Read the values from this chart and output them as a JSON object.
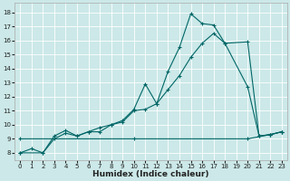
{
  "xlabel": "Humidex (Indice chaleur)",
  "bg_color": "#cce8e8",
  "line_color": "#006666",
  "xlim": [
    -0.5,
    23.5
  ],
  "ylim": [
    7.5,
    18.7
  ],
  "xticks": [
    0,
    1,
    2,
    3,
    4,
    5,
    6,
    7,
    8,
    9,
    10,
    11,
    12,
    13,
    14,
    15,
    16,
    17,
    18,
    19,
    20,
    21,
    22,
    23
  ],
  "yticks": [
    8,
    9,
    10,
    11,
    12,
    13,
    14,
    15,
    16,
    17,
    18
  ],
  "line1_x": [
    0,
    1,
    2,
    3,
    4,
    5,
    6,
    7,
    8,
    9,
    10,
    11,
    12,
    13,
    14,
    15,
    16,
    17,
    18,
    20,
    21,
    22,
    23
  ],
  "line1_y": [
    8.0,
    8.3,
    8.0,
    9.2,
    9.6,
    9.2,
    9.5,
    9.8,
    10.0,
    10.3,
    11.1,
    12.9,
    11.5,
    13.8,
    15.5,
    17.9,
    17.2,
    17.1,
    15.8,
    12.7,
    9.2,
    9.3,
    9.5
  ],
  "line2_x": [
    0,
    2,
    3,
    4,
    5,
    6,
    7,
    8,
    9,
    10,
    11,
    12,
    13,
    14,
    15,
    16,
    17,
    18,
    20,
    21,
    22,
    23
  ],
  "line2_y": [
    8.0,
    8.0,
    9.0,
    9.4,
    9.2,
    9.5,
    9.5,
    10.0,
    10.2,
    11.0,
    11.1,
    11.5,
    12.5,
    13.5,
    14.8,
    15.8,
    16.5,
    15.8,
    15.9,
    9.2,
    9.3,
    9.5
  ],
  "line3_x": [
    0,
    10,
    20,
    22,
    23
  ],
  "line3_y": [
    9.0,
    9.0,
    9.0,
    9.3,
    9.5
  ]
}
